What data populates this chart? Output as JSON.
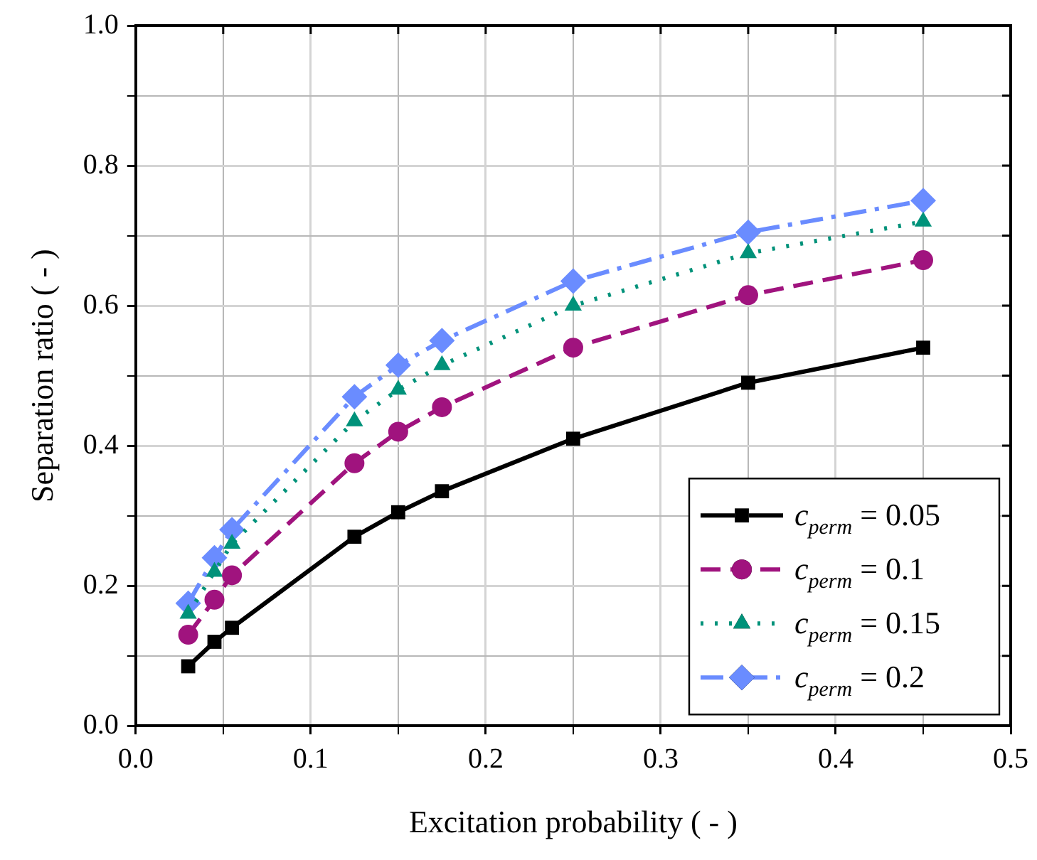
{
  "chart_data": {
    "type": "line",
    "xlabel": "Excitation probability ( - )",
    "ylabel": "Separation ratio ( - )",
    "x": [
      0.03,
      0.045,
      0.055,
      0.125,
      0.15,
      0.175,
      0.25,
      0.35,
      0.45
    ],
    "series": [
      {
        "name": "c$_{perm}$ = 0.05",
        "color": "#000000",
        "marker": "square",
        "line_style": "solid",
        "values": [
          0.085,
          0.12,
          0.14,
          0.27,
          0.305,
          0.335,
          0.41,
          0.49,
          0.54
        ]
      },
      {
        "name": "c$_{perm}$ = 0.1",
        "color": "#a0137e",
        "marker": "circle",
        "line_style": "dashed",
        "values": [
          0.13,
          0.18,
          0.215,
          0.375,
          0.42,
          0.455,
          0.54,
          0.615,
          0.665
        ]
      },
      {
        "name": "c$_{perm}$ = 0.15",
        "color": "#00927a",
        "marker": "triangle",
        "line_style": "dotted",
        "values": [
          0.16,
          0.22,
          0.26,
          0.435,
          0.48,
          0.515,
          0.6,
          0.675,
          0.72
        ]
      },
      {
        "name": "c$_{perm}$ = 0.2",
        "color": "#6a8cff",
        "marker": "diamond",
        "line_style": "dashdot",
        "values": [
          0.175,
          0.24,
          0.28,
          0.47,
          0.515,
          0.55,
          0.635,
          0.705,
          0.75
        ]
      }
    ],
    "xlim": [
      0,
      0.5
    ],
    "xticks": [
      {
        "value": 0,
        "label": "0.0"
      },
      {
        "value": 0.05,
        "label": null
      },
      {
        "value": 0.1,
        "label": "0.1"
      },
      {
        "value": 0.15,
        "label": null
      },
      {
        "value": 0.2,
        "label": "0.2"
      },
      {
        "value": 0.25,
        "label": null
      },
      {
        "value": 0.3,
        "label": "0.3"
      },
      {
        "value": 0.35,
        "label": null
      },
      {
        "value": 0.4,
        "label": "0.4"
      },
      {
        "value": 0.45,
        "label": null
      },
      {
        "value": 0.5,
        "label": "0.5"
      }
    ],
    "ylim": [
      0,
      1
    ],
    "yticks": [
      {
        "value": 0,
        "label": "0.0"
      },
      {
        "value": 0.1,
        "label": null
      },
      {
        "value": 0.2,
        "label": "0.2"
      },
      {
        "value": 0.3,
        "label": null
      },
      {
        "value": 0.4,
        "label": "0.4"
      },
      {
        "value": 0.5,
        "label": null
      },
      {
        "value": 0.6,
        "label": "0.6"
      },
      {
        "value": 0.7,
        "label": null
      },
      {
        "value": 0.8,
        "label": "0.8"
      },
      {
        "value": 0.9,
        "label": null
      },
      {
        "value": 1,
        "label": "1.0"
      }
    ],
    "grid": true,
    "legend": "bottom right"
  }
}
